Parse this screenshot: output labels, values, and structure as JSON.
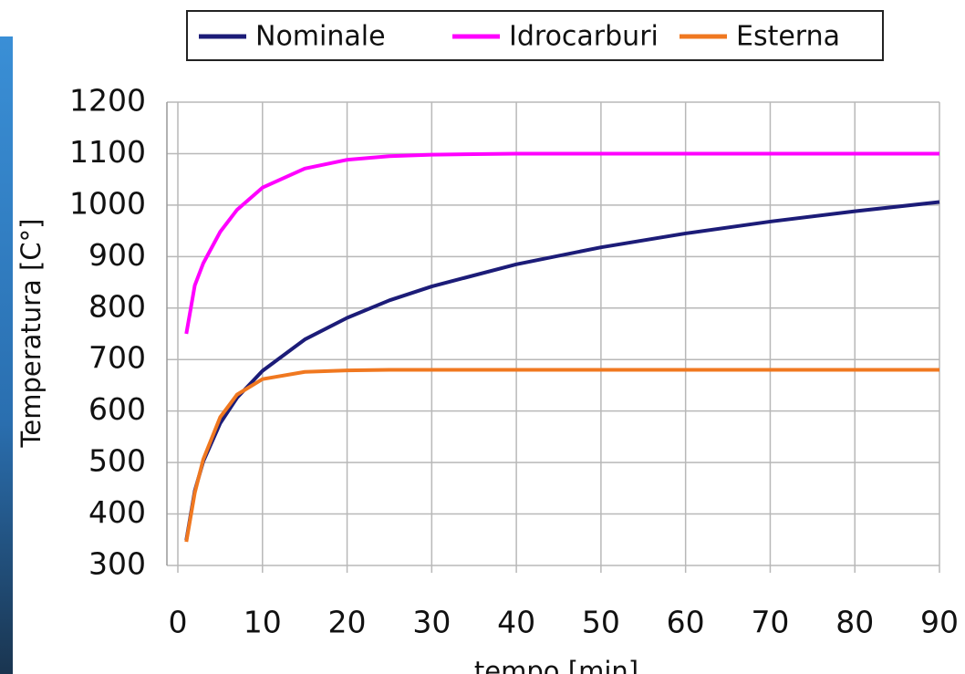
{
  "chart_data": {
    "type": "line",
    "x_label": "tempo  [min]",
    "y_label": "Temperatura  [C°]",
    "x": [
      1,
      2,
      3,
      5,
      7,
      10,
      15,
      20,
      25,
      30,
      40,
      50,
      60,
      70,
      80,
      90
    ],
    "series": [
      {
        "name": "Nominale",
        "color": "#1c1c78",
        "values": [
          349,
          445,
          502,
          576,
          626,
          678,
          739,
          781,
          815,
          842,
          885,
          918,
          945,
          968,
          988,
          1006
        ]
      },
      {
        "name": "Idrocarburi",
        "color": "#ff00ff",
        "values": [
          750,
          844,
          887,
          948,
          991,
          1034,
          1071,
          1088,
          1095,
          1098,
          1100,
          1100,
          1100,
          1100,
          1100,
          1100
        ]
      },
      {
        "name": "Esterna",
        "color": "#f07820",
        "values": [
          346,
          441,
          506,
          588,
          632,
          662,
          676,
          679,
          680,
          680,
          680,
          680,
          680,
          680,
          680,
          680
        ]
      }
    ],
    "xlim": [
      0,
      90
    ],
    "xticks": [
      0,
      10,
      20,
      30,
      40,
      50,
      60,
      70,
      80,
      90
    ],
    "ylim": [
      300,
      1200
    ],
    "yticks": [
      300,
      400,
      500,
      600,
      700,
      800,
      900,
      1000,
      1100,
      1200
    ],
    "grid": true,
    "legend": "top"
  }
}
